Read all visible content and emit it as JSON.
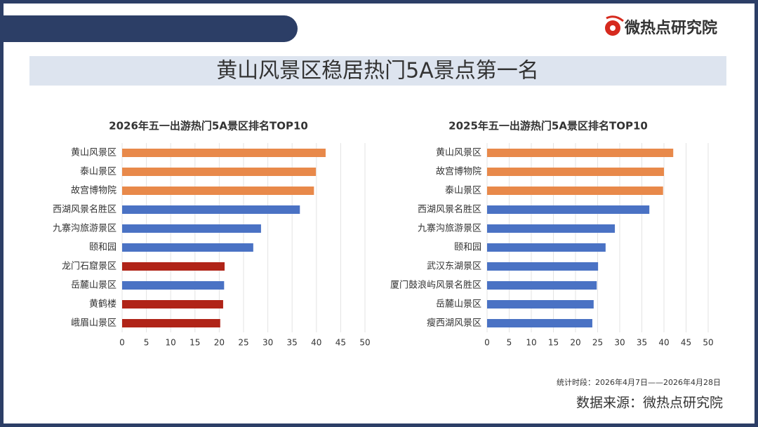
{
  "title": "黄山风景区稳居热门5A景点第一名",
  "brand": "微热点研究院",
  "note": "统计时段：2026年4月7日——2026年4月28日",
  "source": "数据来源：微热点研究院",
  "chart_data": [
    {
      "type": "bar",
      "orientation": "horizontal",
      "title": "2026年五一出游热门5A景区排名TOP10",
      "categories": [
        "黄山风景区",
        "泰山景区",
        "故宫博物院",
        "西湖风景名胜区",
        "九寨沟旅游景区",
        "颐和园",
        "龙门石窟景区",
        "岳麓山景区",
        "黄鹤楼",
        "峨眉山景区"
      ],
      "values": [
        41.9,
        39.9,
        39.5,
        36.6,
        28.6,
        27,
        21.1,
        21,
        20.8,
        20.2
      ],
      "colors": [
        "#e8894a",
        "#e8894a",
        "#e8894a",
        "#4a72c4",
        "#4a72c4",
        "#4a72c4",
        "#b02418",
        "#4a72c4",
        "#b02418",
        "#b02418"
      ],
      "xlim": [
        0,
        50
      ],
      "xticks": [
        0,
        5,
        10,
        15,
        20,
        25,
        30,
        35,
        40,
        45,
        50
      ],
      "grid": true
    },
    {
      "type": "bar",
      "orientation": "horizontal",
      "title": "2025年五一出游热门5A景区排名TOP10",
      "categories": [
        "黄山风景区",
        "故宫博物院",
        "泰山景区",
        "西湖风景名胜区",
        "九寨沟旅游景区",
        "颐和园",
        "武汉东湖景区",
        "厦门鼓浪屿风景名胜区",
        "岳麓山景区",
        "瘦西湖风景区"
      ],
      "values": [
        42.1,
        40,
        39.8,
        36.7,
        28.9,
        26.8,
        25.1,
        24.8,
        24.1,
        23.8
      ],
      "colors": [
        "#e8894a",
        "#e8894a",
        "#e8894a",
        "#4a72c4",
        "#4a72c4",
        "#4a72c4",
        "#4a72c4",
        "#4a72c4",
        "#4a72c4",
        "#4a72c4"
      ],
      "xlim": [
        0,
        50
      ],
      "xticks": [
        0,
        5,
        10,
        15,
        20,
        25,
        30,
        35,
        40,
        45,
        50
      ],
      "grid": true
    }
  ]
}
